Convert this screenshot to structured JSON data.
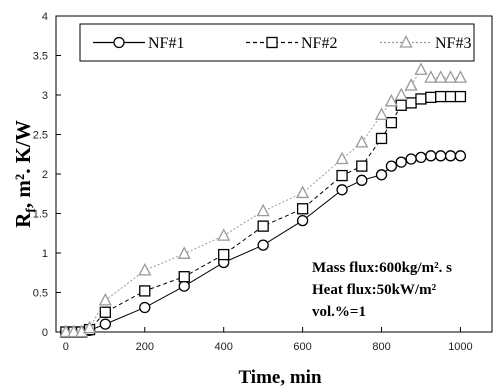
{
  "chart_data": {
    "type": "line",
    "xlabel": "Time, min",
    "ylabel": "R",
    "ylabel_sub": "f",
    "ylabel_rest": ", m². K/W",
    "xlim": [
      -25,
      1080
    ],
    "ylim": [
      0,
      4
    ],
    "xticks": [
      "0",
      "200",
      "400",
      "600",
      "800",
      "1000"
    ],
    "yticks": [
      "0",
      "0.5",
      "1",
      "1.5",
      "2",
      "2.5",
      "3",
      "3.5",
      "4"
    ],
    "series": [
      {
        "name": "NF#1",
        "marker": "circle",
        "line": "solid",
        "color": "#000000",
        "x": [
          0,
          20,
          40,
          60,
          100,
          200,
          300,
          400,
          500,
          600,
          700,
          750,
          800,
          825,
          850,
          875,
          900,
          925,
          950,
          975,
          1000
        ],
        "y": [
          0,
          0,
          0,
          0.02,
          0.1,
          0.31,
          0.58,
          0.88,
          1.1,
          1.41,
          1.8,
          1.92,
          1.99,
          2.1,
          2.15,
          2.19,
          2.21,
          2.23,
          2.23,
          2.23,
          2.23
        ]
      },
      {
        "name": "NF#2",
        "marker": "square",
        "line": "dashed",
        "color": "#000000",
        "x": [
          0,
          20,
          40,
          60,
          100,
          200,
          300,
          400,
          500,
          600,
          700,
          750,
          800,
          825,
          850,
          875,
          900,
          925,
          950,
          975,
          1000
        ],
        "y": [
          0,
          0,
          0,
          0.03,
          0.25,
          0.52,
          0.7,
          0.98,
          1.34,
          1.56,
          1.98,
          2.1,
          2.45,
          2.65,
          2.87,
          2.9,
          2.95,
          2.97,
          2.98,
          2.98,
          2.98
        ]
      },
      {
        "name": "NF#3",
        "marker": "triangle",
        "line": "dotted",
        "color": "#999999",
        "x": [
          0,
          20,
          40,
          60,
          100,
          200,
          300,
          400,
          500,
          600,
          700,
          750,
          800,
          825,
          850,
          875,
          900,
          925,
          950,
          975,
          1000
        ],
        "y": [
          0,
          0,
          0,
          0.05,
          0.4,
          0.78,
          0.99,
          1.22,
          1.53,
          1.76,
          2.19,
          2.4,
          2.75,
          2.92,
          3.0,
          3.12,
          3.32,
          3.22,
          3.22,
          3.22,
          3.22
        ]
      }
    ],
    "annotations": [
      {
        "text": "Mass flux:600kg/m². s"
      },
      {
        "text": "Heat  flux:50kW/m²"
      },
      {
        "text": "vol.%=1"
      }
    ],
    "legend_position": "top",
    "grid": false
  }
}
